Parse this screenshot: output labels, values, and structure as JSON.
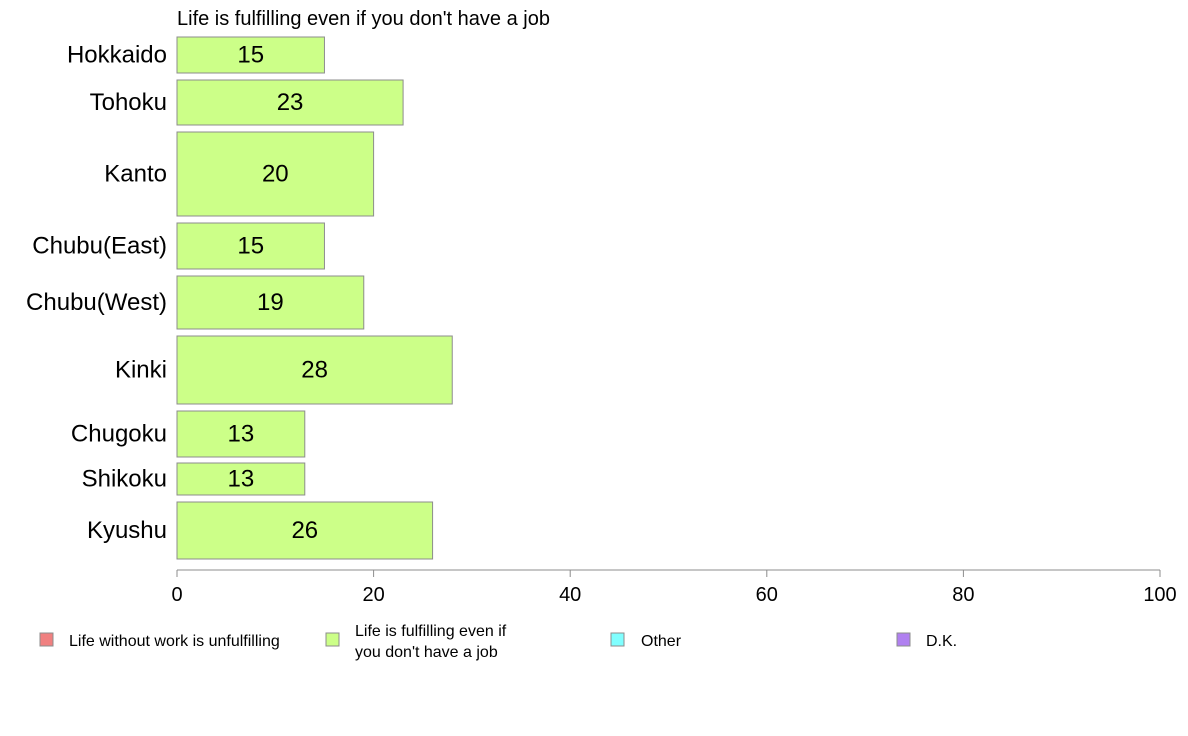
{
  "chart_data": {
    "type": "bar",
    "orientation": "horizontal",
    "title": "Life is fulfilling even if you don't have a job",
    "categories": [
      "Hokkaido",
      "Tohoku",
      "Kanto",
      "Chubu(East)",
      "Chubu(West)",
      "Kinki",
      "Chugoku",
      "Shikoku",
      "Kyushu"
    ],
    "series": [
      {
        "name": "Life is fulfilling even if you don't have a job",
        "values": [
          15,
          23,
          20,
          15,
          19,
          28,
          13,
          13,
          26
        ],
        "color": "#ccff88",
        "data_labels": [
          "15",
          "23",
          "20",
          "15",
          "19",
          "28",
          "13",
          "13",
          "26"
        ]
      }
    ],
    "xlim": [
      0,
      100
    ],
    "xticks": [
      "0",
      "20",
      "40",
      "60",
      "80",
      "100"
    ],
    "grid": false,
    "legend": {
      "placement": "bottom",
      "entries": [
        {
          "label_lines": [
            "Life without work is unfulfilling"
          ],
          "color": "#f08080"
        },
        {
          "label_lines": [
            "Life is fulfilling even if",
            "you don't have a job"
          ],
          "color": "#ccff88"
        },
        {
          "label_lines": [
            "Other"
          ],
          "color": "#80ffff"
        },
        {
          "label_lines": [
            "D.K."
          ],
          "color": "#b080f0"
        }
      ]
    }
  }
}
